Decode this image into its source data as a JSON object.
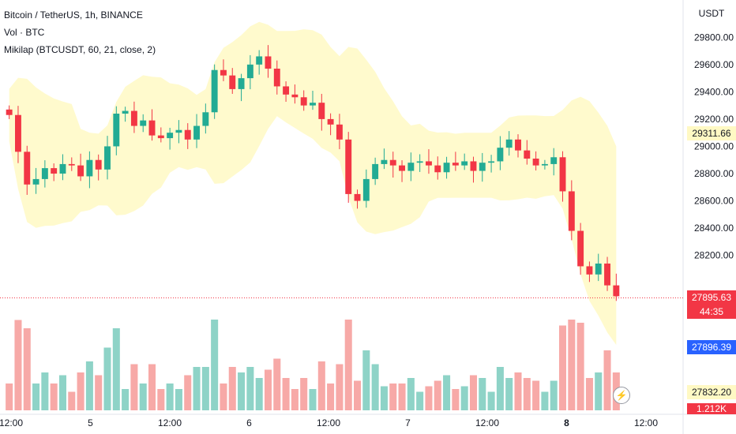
{
  "header": {
    "symbol_line": "Bitcoin / TetherUS, 1h, BINANCE",
    "volume_label": "Vol · BTC",
    "indicator_label": "Mikilap (BTCUSDT, 60, 21, close, 2)"
  },
  "price_axis": {
    "currency": "USDT",
    "ticks": [
      "29800.00",
      "29600.00",
      "29400.00",
      "29200.00",
      "29000.00",
      "28800.00",
      "28600.00",
      "28400.00",
      "28200.00"
    ]
  },
  "time_axis": {
    "ticks": [
      "12:00",
      "5",
      "12:00",
      "6",
      "12:00",
      "7",
      "12:00",
      "8",
      "12:00"
    ]
  },
  "price_tags": {
    "band_upper": "29311.66",
    "band_upper_color": "#fff9c4",
    "last_price": "27896.39",
    "last_price_color": "#2962ff",
    "current_price": "27895.63",
    "countdown": "44:35",
    "current_color": "#f23645",
    "band_lower": "27832.20",
    "volume_value": "1.212K"
  },
  "colors": {
    "up": "#22ab94",
    "down": "#f23645",
    "band_fill": "#fff9c4",
    "volume_up": "#8ed3c7",
    "volume_down": "#f7a9a7",
    "flash_icon": "lightning-icon"
  },
  "chart_data": {
    "type": "candlestick",
    "y_range": [
      27700,
      29900
    ],
    "series": [
      {
        "close": [
          29230,
          28960,
          28720,
          28760,
          28840,
          28800,
          28870,
          28860,
          28780,
          28900,
          28830,
          29000,
          29240,
          29260,
          29150,
          29190,
          29080,
          29060,
          29100,
          29120,
          29050,
          29150,
          29250,
          29560,
          29520,
          29420,
          29500,
          29600,
          29660,
          29570,
          29440,
          29380,
          29360,
          29300,
          29320,
          29200,
          29160,
          29050,
          28650,
          28600,
          28760,
          28870,
          28900,
          28860,
          28820,
          28880,
          28890,
          28860,
          28810,
          28880,
          28860,
          28890,
          28820,
          28880,
          28890,
          28990,
          29050,
          28970,
          28910,
          28860,
          28870,
          28920,
          28670,
          28380,
          28120,
          28060,
          28140,
          27980,
          27900
        ]
      }
    ]
  }
}
